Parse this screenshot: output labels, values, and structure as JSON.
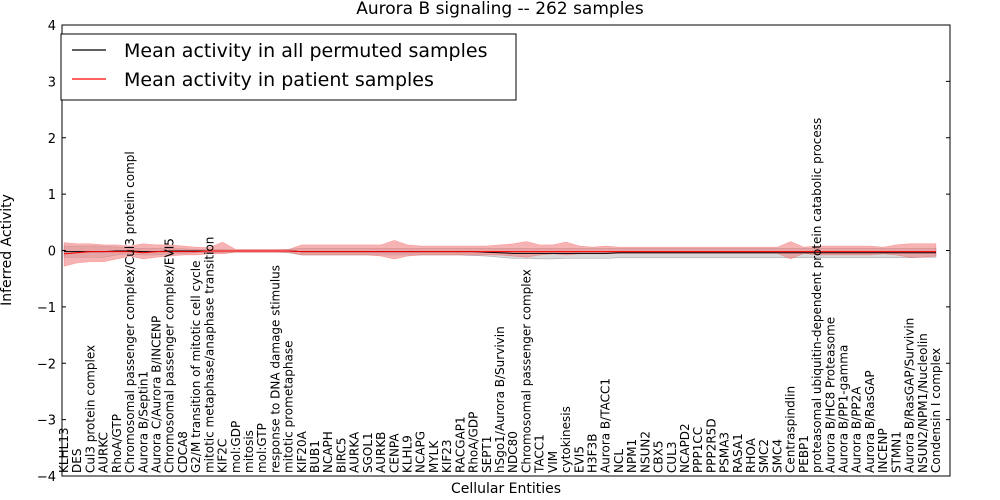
{
  "chart_data": {
    "type": "line",
    "title": "Aurora B signaling -- 262 samples",
    "xlabel": "Cellular Entities",
    "ylabel": "Inferred Activity",
    "ylim": [
      -4,
      4
    ],
    "yticks": [
      "−4",
      "−3",
      "−2",
      "−1",
      "0",
      "1",
      "2",
      "3",
      "4"
    ],
    "grid": false,
    "legend_position": "top-left",
    "categories": [
      "KLHL13",
      "DES",
      "Cul3 protein complex",
      "AURKC",
      "RhoA/GTP",
      "Chromosomal passenger complex/Cul3 protein compl",
      "Aurora B/Septin1",
      "Aurora C/Aurora B/INCENP",
      "Chromosomal passenger complex/EVI5",
      "CDCA8",
      "G2/M transition of mitotic cell cycle",
      "mitotic metaphase/anaphase transition",
      "KIF2C",
      "mol:GDP",
      "mitosis",
      "mol:GTP",
      "response to DNA damage stimulus",
      "mitotic prometaphase",
      "KIF20A",
      "BUB1",
      "NCAPH",
      "BIRC5",
      "AURKA",
      "SGOL1",
      "AURKB",
      "CENPA",
      "KLHL9",
      "NCAPG",
      "MYLK",
      "KIF23",
      "RACGAP1",
      "RhoA/GDP",
      "SEPT1",
      "hSgo1/Aurora B/Survivin",
      "NDC80",
      "Chromosomal passenger complex",
      "TACC1",
      "VIM",
      "cytokinesis",
      "EVI5",
      "H3F3B",
      "Aurora B/TACC1",
      "NCL",
      "NPM1",
      "NSUN2",
      "CBX5",
      "CUL3",
      "NCAPD2",
      "PPP1CC",
      "PPP2R5D",
      "PSMA3",
      "RASA1",
      "RHOA",
      "SMC2",
      "SMC4",
      "Centraspindlin",
      "PEBP1",
      "proteasomal ubiquitin-dependent protein catabolic process",
      "Aurora B/HC8 Proteasome",
      "Aurora B/PP1-gamma",
      "Aurora B/PP2A",
      "Aurora B/RasGAP",
      "INCENP",
      "STMN1",
      "Aurora B/RasGAP/Survivin",
      "NSUN2/NPM1/Nucleolin",
      "Condensin I complex"
    ],
    "series": [
      {
        "name": "Mean activity in all permuted samples",
        "color": "#000000",
        "band_color": "#bfbfbf",
        "values": [
          -0.02,
          -0.02,
          -0.02,
          -0.02,
          -0.01,
          -0.01,
          -0.02,
          -0.02,
          -0.01,
          -0.01,
          -0.01,
          -0.01,
          -0.01,
          -0.01,
          -0.01,
          -0.01,
          -0.01,
          -0.01,
          -0.02,
          -0.02,
          -0.02,
          -0.02,
          -0.02,
          -0.02,
          -0.02,
          -0.02,
          -0.02,
          -0.02,
          -0.02,
          -0.02,
          -0.02,
          -0.02,
          -0.03,
          -0.04,
          -0.05,
          -0.05,
          -0.05,
          -0.05,
          -0.05,
          -0.05,
          -0.05,
          -0.05,
          -0.04,
          -0.04,
          -0.04,
          -0.04,
          -0.04,
          -0.04,
          -0.04,
          -0.04,
          -0.04,
          -0.04,
          -0.04,
          -0.04,
          -0.04,
          -0.04,
          -0.04,
          -0.04,
          -0.04,
          -0.04,
          -0.04,
          -0.04,
          -0.04,
          -0.04,
          -0.04,
          -0.04,
          -0.04
        ],
        "lower": [
          -0.12,
          -0.12,
          -0.12,
          -0.12,
          -0.08,
          -0.06,
          -0.08,
          -0.08,
          -0.06,
          -0.05,
          -0.04,
          -0.04,
          -0.04,
          -0.03,
          -0.03,
          -0.03,
          -0.03,
          -0.04,
          -0.08,
          -0.08,
          -0.08,
          -0.08,
          -0.08,
          -0.08,
          -0.08,
          -0.08,
          -0.08,
          -0.08,
          -0.08,
          -0.08,
          -0.08,
          -0.09,
          -0.1,
          -0.12,
          -0.14,
          -0.14,
          -0.15,
          -0.15,
          -0.14,
          -0.14,
          -0.14,
          -0.14,
          -0.13,
          -0.13,
          -0.13,
          -0.13,
          -0.13,
          -0.13,
          -0.13,
          -0.13,
          -0.13,
          -0.13,
          -0.13,
          -0.13,
          -0.13,
          -0.13,
          -0.13,
          -0.13,
          -0.13,
          -0.13,
          -0.13,
          -0.13,
          -0.13,
          -0.13,
          -0.13,
          -0.12,
          -0.12
        ],
        "upper": [
          0.08,
          0.08,
          0.08,
          0.08,
          0.06,
          0.04,
          0.04,
          0.04,
          0.04,
          0.03,
          0.02,
          0.02,
          0.02,
          0.01,
          0.01,
          0.01,
          0.01,
          0.02,
          0.04,
          0.04,
          0.04,
          0.04,
          0.04,
          0.04,
          0.04,
          0.04,
          0.04,
          0.04,
          0.04,
          0.04,
          0.04,
          0.04,
          0.04,
          0.04,
          0.04,
          0.04,
          0.04,
          0.04,
          0.04,
          0.04,
          0.04,
          0.04,
          0.04,
          0.04,
          0.04,
          0.04,
          0.04,
          0.04,
          0.04,
          0.04,
          0.04,
          0.04,
          0.04,
          0.04,
          0.04,
          0.04,
          0.04,
          0.04,
          0.04,
          0.04,
          0.04,
          0.04,
          0.04,
          0.04,
          0.04,
          0.04,
          0.04
        ]
      },
      {
        "name": "Mean activity in patient samples",
        "color": "#ff0000",
        "band_color": "#f08080",
        "values": [
          -0.06,
          -0.04,
          -0.02,
          -0.02,
          -0.02,
          -0.02,
          -0.04,
          -0.02,
          -0.02,
          -0.02,
          -0.02,
          -0.01,
          -0.01,
          -0.01,
          -0.01,
          -0.01,
          -0.01,
          -0.01,
          -0.02,
          -0.02,
          -0.02,
          -0.02,
          -0.02,
          -0.02,
          -0.02,
          -0.02,
          -0.02,
          -0.02,
          -0.02,
          -0.02,
          -0.02,
          -0.02,
          -0.02,
          -0.02,
          -0.02,
          -0.02,
          -0.02,
          -0.02,
          -0.02,
          -0.02,
          -0.02,
          -0.02,
          -0.02,
          -0.02,
          -0.02,
          -0.02,
          -0.02,
          -0.02,
          -0.02,
          -0.02,
          -0.02,
          -0.02,
          -0.02,
          -0.02,
          -0.02,
          -0.02,
          -0.02,
          -0.02,
          -0.02,
          -0.02,
          -0.02,
          -0.02,
          -0.02,
          -0.02,
          -0.02,
          -0.02,
          -0.02
        ],
        "lower": [
          -0.28,
          -0.22,
          -0.2,
          -0.2,
          -0.15,
          -0.1,
          -0.15,
          -0.12,
          -0.1,
          -0.08,
          -0.08,
          -0.06,
          -0.06,
          -0.03,
          -0.03,
          -0.03,
          -0.03,
          -0.03,
          -0.08,
          -0.08,
          -0.08,
          -0.08,
          -0.08,
          -0.08,
          -0.1,
          -0.15,
          -0.1,
          -0.08,
          -0.08,
          -0.08,
          -0.08,
          -0.08,
          -0.08,
          -0.08,
          -0.1,
          -0.12,
          -0.08,
          -0.06,
          -0.08,
          -0.06,
          -0.06,
          -0.06,
          -0.05,
          -0.05,
          -0.05,
          -0.05,
          -0.05,
          -0.05,
          -0.05,
          -0.05,
          -0.05,
          -0.05,
          -0.05,
          -0.05,
          -0.05,
          -0.15,
          -0.05,
          -0.08,
          -0.08,
          -0.08,
          -0.08,
          -0.08,
          -0.06,
          -0.08,
          -0.12,
          -0.12,
          -0.1
        ],
        "upper": [
          0.14,
          0.12,
          0.12,
          0.1,
          0.1,
          0.08,
          0.12,
          0.1,
          0.1,
          0.08,
          0.06,
          0.05,
          0.15,
          0.02,
          0.02,
          0.02,
          0.02,
          0.02,
          0.1,
          0.1,
          0.1,
          0.1,
          0.1,
          0.1,
          0.1,
          0.18,
          0.1,
          0.08,
          0.08,
          0.08,
          0.08,
          0.08,
          0.08,
          0.1,
          0.12,
          0.16,
          0.1,
          0.1,
          0.15,
          0.08,
          0.06,
          0.08,
          0.06,
          0.06,
          0.06,
          0.06,
          0.06,
          0.06,
          0.06,
          0.06,
          0.06,
          0.06,
          0.06,
          0.06,
          0.06,
          0.16,
          0.06,
          0.08,
          0.08,
          0.08,
          0.08,
          0.08,
          0.06,
          0.1,
          0.12,
          0.12,
          0.12
        ]
      }
    ]
  }
}
